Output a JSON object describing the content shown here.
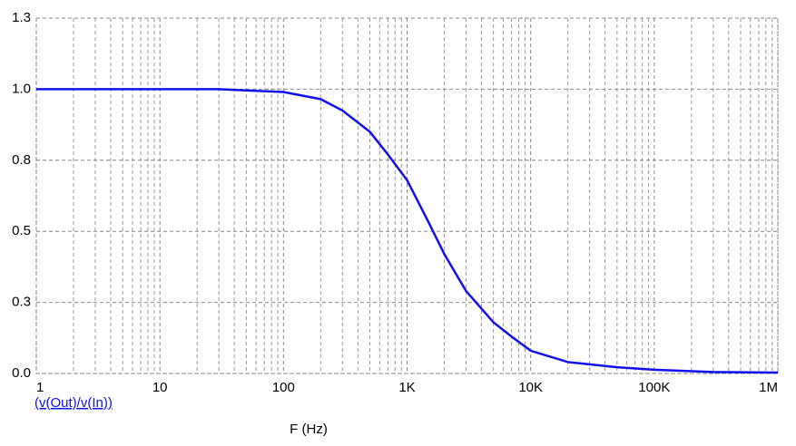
{
  "chart_data": {
    "type": "line",
    "xlabel": "F (Hz)",
    "xscale": "log",
    "grid": true,
    "xlim": [
      1,
      1000000
    ],
    "xticks": [
      1,
      10,
      100,
      {
        "value": 1000,
        "label": "1K"
      },
      {
        "value": 10000,
        "label": "10K"
      },
      {
        "value": 100000,
        "label": "100K"
      },
      {
        "value": 1000000,
        "label": "1M"
      }
    ],
    "ylim": [
      0,
      1.25
    ],
    "yticks": [
      {
        "value": 0,
        "label": "0.0"
      },
      {
        "value": 0.25,
        "label": "0.3"
      },
      {
        "value": 0.5,
        "label": "0.5"
      },
      {
        "value": 0.75,
        "label": "0.8"
      },
      {
        "value": 1.0,
        "label": "1.0"
      },
      {
        "value": 1.25,
        "label": "1.3"
      }
    ],
    "x": [
      1,
      10,
      30,
      100,
      200,
      300,
      500,
      700,
      1000,
      1500,
      2000,
      3000,
      5000,
      7000,
      10000,
      20000,
      50000,
      100000,
      300000,
      1000000
    ],
    "series": [
      {
        "name": "(v(Out)/v(In))",
        "color": "#1010f0",
        "values": [
          1.0,
          1.0,
          1.0,
          0.99,
          0.965,
          0.925,
          0.85,
          0.77,
          0.68,
          0.53,
          0.42,
          0.29,
          0.18,
          0.13,
          0.08,
          0.04,
          0.022,
          0.013,
          0.005,
          0.003
        ]
      }
    ]
  }
}
